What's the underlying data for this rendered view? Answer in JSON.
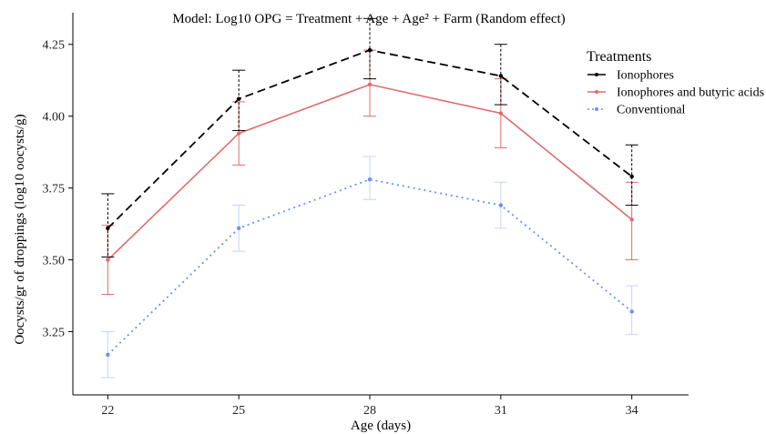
{
  "chart_data": {
    "type": "line",
    "title": "Model: Log10 OPG = Treatment + Age + Age² + Farm (Random effect)",
    "xlabel": "Age (days)",
    "ylabel": "Oocysts/gr of droppings (log10 oocysts/g)",
    "x": [
      22,
      25,
      28,
      31,
      34
    ],
    "x_tick_labels": [
      "22",
      "25",
      "28",
      "31",
      "34"
    ],
    "xlim": [
      21.2,
      35.3
    ],
    "ylim": [
      3.03,
      4.36
    ],
    "y_ticks": [
      3.25,
      3.5,
      3.75,
      4.0,
      4.25
    ],
    "y_tick_labels": [
      "3.25",
      "3.50",
      "3.75",
      "4.00",
      "4.25"
    ],
    "grid": false,
    "legend": {
      "title": "Treatments",
      "position": "top-right"
    },
    "series": [
      {
        "name": "Ionophores",
        "color": "#000000",
        "line_style": "dashed",
        "values": [
          3.61,
          4.06,
          4.23,
          4.14,
          3.79
        ],
        "lower": [
          3.51,
          3.95,
          4.13,
          4.04,
          3.69
        ],
        "upper": [
          3.73,
          4.16,
          4.34,
          4.25,
          3.9
        ]
      },
      {
        "name": "Ionophores and butyric acids",
        "color": "#e06b6b",
        "line_style": "solid",
        "values": [
          3.5,
          3.94,
          4.11,
          4.01,
          3.64
        ],
        "lower": [
          3.38,
          3.83,
          4.0,
          3.89,
          3.5
        ],
        "upper": [
          3.62,
          4.05,
          4.23,
          4.13,
          3.77
        ]
      },
      {
        "name": "Conventional",
        "color": "#6d8ff5",
        "line_style": "dotted",
        "values": [
          3.17,
          3.61,
          3.78,
          3.69,
          3.32
        ],
        "lower": [
          3.09,
          3.53,
          3.71,
          3.61,
          3.24
        ],
        "upper": [
          3.25,
          3.69,
          3.86,
          3.77,
          3.41
        ]
      }
    ]
  }
}
